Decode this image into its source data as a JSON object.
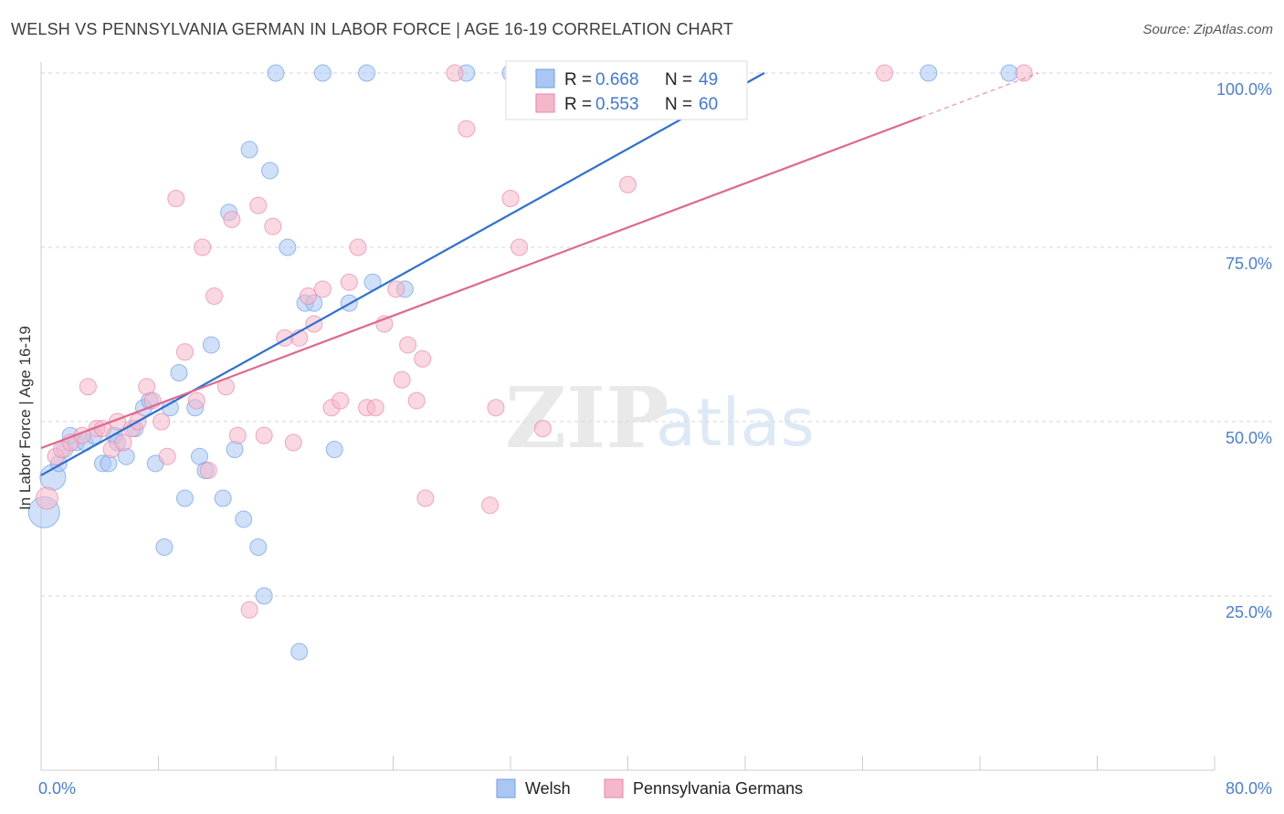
{
  "title": "WELSH VS PENNSYLVANIA GERMAN IN LABOR FORCE | AGE 16-19 CORRELATION CHART",
  "source": "Source: ZipAtlas.com",
  "chart_data": {
    "type": "scatter",
    "ylabel": "In Labor Force | Age 16-19",
    "x_tick_labels": [
      "0.0%",
      "80.0%"
    ],
    "y_tick_labels": [
      "100.0%",
      "75.0%",
      "50.0%",
      "25.0%"
    ],
    "xlim": [
      0,
      80
    ],
    "ylim": [
      0,
      103
    ],
    "y_ticks": [
      100,
      75,
      50,
      25
    ],
    "grid": "horizontal dashed",
    "legend_position": "top-center",
    "stats": [
      {
        "r_label": "R = ",
        "r_value": "0.668",
        "n_label": "N = ",
        "n_value": "49"
      },
      {
        "r_label": "R = ",
        "r_value": "0.553",
        "n_label": "N = ",
        "n_value": "60"
      }
    ],
    "series": [
      {
        "name": "Welsh",
        "color": "#6f9ee8",
        "fill": "#aac6f2",
        "trend": {
          "x": [
            0,
            49.3
          ],
          "y": [
            42.3,
            100
          ]
        },
        "points": [
          [
            0.2,
            37
          ],
          [
            0.8,
            42
          ],
          [
            1.2,
            44
          ],
          [
            1.6,
            46
          ],
          [
            2.0,
            48
          ],
          [
            2.4,
            47
          ],
          [
            3.0,
            47
          ],
          [
            3.6,
            48
          ],
          [
            4.2,
            44
          ],
          [
            4.6,
            44
          ],
          [
            5.0,
            48
          ],
          [
            5.2,
            47
          ],
          [
            5.8,
            45
          ],
          [
            6.4,
            49
          ],
          [
            7.0,
            52
          ],
          [
            7.4,
            53
          ],
          [
            7.8,
            44
          ],
          [
            8.4,
            32
          ],
          [
            8.8,
            52
          ],
          [
            9.4,
            57
          ],
          [
            9.8,
            39
          ],
          [
            10.5,
            52
          ],
          [
            10.8,
            45
          ],
          [
            11.2,
            43
          ],
          [
            11.6,
            61
          ],
          [
            12.4,
            39
          ],
          [
            12.8,
            80
          ],
          [
            13.2,
            46
          ],
          [
            13.8,
            36
          ],
          [
            14.2,
            89
          ],
          [
            14.8,
            32
          ],
          [
            15.2,
            25
          ],
          [
            15.6,
            86
          ],
          [
            16.0,
            100
          ],
          [
            16.8,
            75
          ],
          [
            17.6,
            17
          ],
          [
            18.0,
            67
          ],
          [
            18.6,
            67
          ],
          [
            19.2,
            100
          ],
          [
            20.0,
            46
          ],
          [
            21.0,
            67
          ],
          [
            22.2,
            100
          ],
          [
            22.6,
            70
          ],
          [
            24.8,
            69
          ],
          [
            29.0,
            100
          ],
          [
            32.0,
            100
          ],
          [
            35.8,
            100
          ],
          [
            60.5,
            100
          ],
          [
            66.0,
            100
          ]
        ]
      },
      {
        "name": "Pennsylvania Germans",
        "color": "#e886a6",
        "fill": "#f5b8cb",
        "trend": {
          "x": [
            0,
            68
          ],
          "y": [
            46.2,
            100
          ]
        },
        "points": [
          [
            0.4,
            39
          ],
          [
            1.0,
            45
          ],
          [
            1.4,
            46
          ],
          [
            2.0,
            47
          ],
          [
            2.8,
            48
          ],
          [
            3.2,
            55
          ],
          [
            3.8,
            49
          ],
          [
            4.2,
            49
          ],
          [
            4.8,
            46
          ],
          [
            5.2,
            50
          ],
          [
            5.6,
            47
          ],
          [
            6.2,
            49
          ],
          [
            6.6,
            50
          ],
          [
            7.2,
            55
          ],
          [
            7.6,
            53
          ],
          [
            8.2,
            50
          ],
          [
            8.6,
            45
          ],
          [
            9.2,
            82
          ],
          [
            9.8,
            60
          ],
          [
            10.6,
            53
          ],
          [
            11.0,
            75
          ],
          [
            11.4,
            43
          ],
          [
            11.8,
            68
          ],
          [
            12.6,
            55
          ],
          [
            13.0,
            79
          ],
          [
            13.4,
            48
          ],
          [
            14.2,
            23
          ],
          [
            14.8,
            81
          ],
          [
            15.2,
            48
          ],
          [
            15.8,
            78
          ],
          [
            16.6,
            62
          ],
          [
            17.2,
            47
          ],
          [
            17.6,
            62
          ],
          [
            18.2,
            68
          ],
          [
            18.6,
            64
          ],
          [
            19.2,
            69
          ],
          [
            19.8,
            52
          ],
          [
            20.4,
            53
          ],
          [
            21.0,
            70
          ],
          [
            21.6,
            75
          ],
          [
            22.2,
            52
          ],
          [
            22.8,
            52
          ],
          [
            23.4,
            64
          ],
          [
            24.2,
            69
          ],
          [
            24.6,
            56
          ],
          [
            25.0,
            61
          ],
          [
            25.6,
            53
          ],
          [
            26.0,
            59
          ],
          [
            26.2,
            39
          ],
          [
            28.2,
            100
          ],
          [
            29.0,
            92
          ],
          [
            30.6,
            38
          ],
          [
            31.0,
            52
          ],
          [
            32.0,
            82
          ],
          [
            32.6,
            75
          ],
          [
            34.2,
            49
          ],
          [
            38.2,
            100
          ],
          [
            40.0,
            84
          ],
          [
            57.5,
            100
          ],
          [
            67.0,
            100
          ]
        ]
      }
    ]
  }
}
